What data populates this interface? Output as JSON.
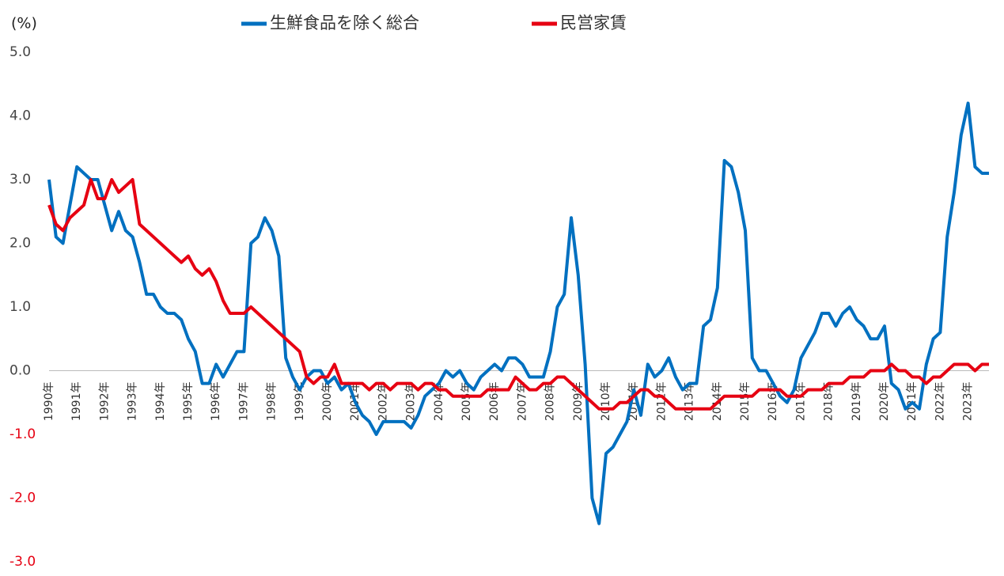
{
  "chart_data": {
    "type": "line",
    "y_unit_label": "(%)",
    "categories": [
      "1990年",
      null,
      null,
      null,
      "1991年",
      null,
      null,
      null,
      "1992年",
      null,
      null,
      null,
      "1993年",
      null,
      null,
      null,
      "1994年",
      null,
      null,
      null,
      "1995年",
      null,
      null,
      null,
      "1996年",
      null,
      null,
      null,
      "1997年",
      null,
      null,
      null,
      "1998年",
      null,
      null,
      null,
      "1999年",
      null,
      null,
      null,
      "2000年",
      null,
      null,
      null,
      "2001年",
      null,
      null,
      null,
      "2002年",
      null,
      null,
      null,
      "2003年",
      null,
      null,
      null,
      "2004年",
      null,
      null,
      null,
      "2005年",
      null,
      null,
      null,
      "2006年",
      null,
      null,
      null,
      "2007年",
      null,
      null,
      null,
      "2008年",
      null,
      null,
      null,
      "2009年",
      null,
      null,
      null,
      "2010年",
      null,
      null,
      null,
      "2011年",
      null,
      null,
      null,
      "2012年",
      null,
      null,
      null,
      "2013年",
      null,
      null,
      null,
      "2014年",
      null,
      null,
      null,
      "2015年",
      null,
      null,
      null,
      "2016年",
      null,
      null,
      null,
      "2017年",
      null,
      null,
      null,
      "2018年",
      null,
      null,
      null,
      "2019年",
      null,
      null,
      null,
      "2020年",
      null,
      null,
      null,
      "2021年",
      null,
      null,
      null,
      "2022年",
      null,
      null,
      null,
      "2023年",
      null,
      null,
      null
    ],
    "series": [
      {
        "name": "生鮮食品を除く総合",
        "color": "#0070c0",
        "values": [
          3.0,
          2.1,
          2.0,
          2.6,
          3.2,
          3.1,
          3.0,
          3.0,
          2.6,
          2.2,
          2.5,
          2.2,
          2.1,
          1.7,
          1.2,
          1.2,
          1.0,
          0.9,
          0.9,
          0.8,
          0.5,
          0.3,
          -0.2,
          -0.2,
          0.1,
          -0.1,
          0.1,
          0.3,
          0.3,
          2.0,
          2.1,
          2.4,
          2.2,
          1.8,
          0.2,
          -0.1,
          -0.3,
          -0.1,
          0.0,
          0.0,
          -0.2,
          -0.1,
          -0.3,
          -0.2,
          -0.5,
          -0.7,
          -0.8,
          -1.0,
          -0.8,
          -0.8,
          -0.8,
          -0.8,
          -0.9,
          -0.7,
          -0.4,
          -0.3,
          -0.2,
          0.0,
          -0.1,
          0.0,
          -0.2,
          -0.3,
          -0.1,
          0.0,
          0.1,
          0.0,
          0.2,
          0.2,
          0.1,
          -0.1,
          -0.1,
          -0.1,
          0.3,
          1.0,
          1.2,
          2.4,
          1.5,
          0.1,
          -2.0,
          -2.4,
          -1.3,
          -1.2,
          -1.0,
          -0.8,
          -0.3,
          -0.7,
          0.1,
          -0.1,
          0.0,
          0.2,
          -0.1,
          -0.3,
          -0.2,
          -0.2,
          0.7,
          0.8,
          1.3,
          3.3,
          3.2,
          2.8,
          2.2,
          0.2,
          0.0,
          0.0,
          -0.2,
          -0.4,
          -0.5,
          -0.3,
          0.2,
          0.4,
          0.6,
          0.9,
          0.9,
          0.7,
          0.9,
          1.0,
          0.8,
          0.7,
          0.5,
          0.5,
          0.7,
          -0.2,
          -0.3,
          -0.6,
          -0.5,
          -0.6,
          0.1,
          0.5,
          0.6,
          2.1,
          2.8,
          3.7,
          4.2,
          3.2,
          3.1,
          3.1
        ]
      },
      {
        "name": "民営家賃",
        "color": "#e60012",
        "values": [
          2.6,
          2.3,
          2.2,
          2.4,
          2.5,
          2.6,
          3.0,
          2.7,
          2.7,
          3.0,
          2.8,
          2.9,
          3.0,
          2.3,
          2.2,
          2.1,
          2.0,
          1.9,
          1.8,
          1.7,
          1.8,
          1.6,
          1.5,
          1.6,
          1.4,
          1.1,
          0.9,
          0.9,
          0.9,
          1.0,
          0.9,
          0.8,
          0.7,
          0.6,
          0.5,
          0.4,
          0.3,
          -0.1,
          -0.2,
          -0.1,
          -0.1,
          0.1,
          -0.2,
          -0.2,
          -0.2,
          -0.2,
          -0.3,
          -0.2,
          -0.2,
          -0.3,
          -0.2,
          -0.2,
          -0.2,
          -0.3,
          -0.2,
          -0.2,
          -0.3,
          -0.3,
          -0.4,
          -0.4,
          -0.4,
          -0.4,
          -0.4,
          -0.3,
          -0.3,
          -0.3,
          -0.3,
          -0.1,
          -0.2,
          -0.3,
          -0.3,
          -0.2,
          -0.2,
          -0.1,
          -0.1,
          -0.2,
          -0.3,
          -0.4,
          -0.5,
          -0.6,
          -0.6,
          -0.6,
          -0.5,
          -0.5,
          -0.4,
          -0.3,
          -0.3,
          -0.4,
          -0.4,
          -0.5,
          -0.6,
          -0.6,
          -0.6,
          -0.6,
          -0.6,
          -0.6,
          -0.5,
          -0.4,
          -0.4,
          -0.4,
          -0.4,
          -0.4,
          -0.3,
          -0.3,
          -0.3,
          -0.3,
          -0.4,
          -0.4,
          -0.4,
          -0.3,
          -0.3,
          -0.3,
          -0.2,
          -0.2,
          -0.2,
          -0.1,
          -0.1,
          -0.1,
          0.0,
          0.0,
          0.0,
          0.1,
          0.0,
          0.0,
          -0.1,
          -0.1,
          -0.2,
          -0.1,
          -0.1,
          0.0,
          0.1,
          0.1,
          0.1,
          0.0,
          0.1,
          0.1
        ]
      }
    ],
    "ylim": [
      -3,
      5
    ],
    "yticks": [
      {
        "value": -3,
        "label": "-3.0"
      },
      {
        "value": -2,
        "label": "-2.0"
      },
      {
        "value": -1,
        "label": "-1.0"
      },
      {
        "value": 0,
        "label": "0.0"
      },
      {
        "value": 1,
        "label": "1.0"
      },
      {
        "value": 2,
        "label": "2.0"
      },
      {
        "value": 3,
        "label": "3.0"
      },
      {
        "value": 4,
        "label": "4.0"
      },
      {
        "value": 5,
        "label": "5.0"
      }
    ],
    "negative_tick_color": "#e60012",
    "legend": "top"
  }
}
